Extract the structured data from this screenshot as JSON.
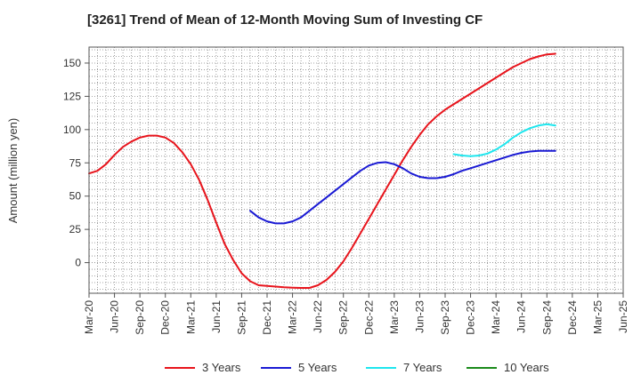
{
  "chart_data": {
    "type": "line",
    "title": "[3261]  Trend of Mean of 12-Month Moving Sum of Investing CF",
    "xlabel": "",
    "ylabel": "Amount (million yen)",
    "ylim": [
      -23,
      162
    ],
    "yticks": [
      0,
      25,
      50,
      75,
      100,
      125,
      150
    ],
    "x_tick_labels": [
      "Mar-20",
      "Jun-20",
      "Sep-20",
      "Dec-20",
      "Mar-21",
      "Jun-21",
      "Sep-21",
      "Dec-21",
      "Mar-22",
      "Jun-22",
      "Sep-22",
      "Dec-22",
      "Mar-23",
      "Jun-23",
      "Sep-23",
      "Dec-23",
      "Mar-24",
      "Jun-24",
      "Sep-24",
      "Dec-24",
      "Mar-25",
      "Jun-25"
    ],
    "x_range_months": [
      0,
      63
    ],
    "grid": true,
    "legend_position": "bottom",
    "series": [
      {
        "name": "3 Years",
        "color": "#e8141c",
        "points": [
          [
            0,
            67
          ],
          [
            1,
            69
          ],
          [
            2,
            74
          ],
          [
            3,
            81
          ],
          [
            4,
            87
          ],
          [
            5,
            91
          ],
          [
            6,
            94
          ],
          [
            7,
            95.5
          ],
          [
            8,
            95.5
          ],
          [
            9,
            94
          ],
          [
            10,
            90
          ],
          [
            11,
            83
          ],
          [
            12,
            74
          ],
          [
            13,
            62
          ],
          [
            14,
            47
          ],
          [
            15,
            30
          ],
          [
            16,
            14
          ],
          [
            17,
            2
          ],
          [
            18,
            -8
          ],
          [
            19,
            -14
          ],
          [
            20,
            -17
          ],
          [
            21,
            -17.5
          ],
          [
            22,
            -18
          ],
          [
            23,
            -18.5
          ],
          [
            24,
            -18.8
          ],
          [
            25,
            -19
          ],
          [
            26,
            -19
          ],
          [
            27,
            -17
          ],
          [
            28,
            -13
          ],
          [
            29,
            -7
          ],
          [
            30,
            1
          ],
          [
            31,
            11
          ],
          [
            32,
            22
          ],
          [
            33,
            33
          ],
          [
            34,
            44
          ],
          [
            35,
            55
          ],
          [
            36,
            66
          ],
          [
            37,
            77
          ],
          [
            38,
            87
          ],
          [
            39,
            96
          ],
          [
            40,
            104
          ],
          [
            41,
            110
          ],
          [
            42,
            115
          ],
          [
            43,
            119
          ],
          [
            44,
            123
          ],
          [
            45,
            127
          ],
          [
            46,
            131
          ],
          [
            47,
            135
          ],
          [
            48,
            139
          ],
          [
            49,
            143
          ],
          [
            50,
            147
          ],
          [
            51,
            150
          ],
          [
            52,
            153
          ],
          [
            53,
            155
          ],
          [
            54,
            156.5
          ],
          [
            55,
            157
          ]
        ]
      },
      {
        "name": "5 Years",
        "color": "#1a1ad4",
        "points": [
          [
            19,
            39
          ],
          [
            20,
            34
          ],
          [
            21,
            31
          ],
          [
            22,
            29.5
          ],
          [
            23,
            29.5
          ],
          [
            24,
            31
          ],
          [
            25,
            34
          ],
          [
            26,
            39
          ],
          [
            27,
            44
          ],
          [
            28,
            49
          ],
          [
            29,
            54
          ],
          [
            30,
            59
          ],
          [
            31,
            64
          ],
          [
            32,
            69
          ],
          [
            33,
            73
          ],
          [
            34,
            75
          ],
          [
            35,
            75.5
          ],
          [
            36,
            74
          ],
          [
            37,
            71
          ],
          [
            38,
            67
          ],
          [
            39,
            64.5
          ],
          [
            40,
            63.5
          ],
          [
            41,
            63.5
          ],
          [
            42,
            64.5
          ],
          [
            43,
            66.5
          ],
          [
            44,
            69
          ],
          [
            45,
            71
          ],
          [
            46,
            73
          ],
          [
            47,
            75
          ],
          [
            48,
            77
          ],
          [
            49,
            79
          ],
          [
            50,
            81
          ],
          [
            51,
            82.5
          ],
          [
            52,
            83.5
          ],
          [
            53,
            84
          ],
          [
            54,
            84
          ],
          [
            55,
            84
          ]
        ]
      },
      {
        "name": "7 Years",
        "color": "#1ee6ee",
        "points": [
          [
            43,
            81.5
          ],
          [
            44,
            80.5
          ],
          [
            45,
            80
          ],
          [
            46,
            80.5
          ],
          [
            47,
            82
          ],
          [
            48,
            85
          ],
          [
            49,
            89
          ],
          [
            50,
            94
          ],
          [
            51,
            98
          ],
          [
            52,
            101
          ],
          [
            53,
            103
          ],
          [
            54,
            104
          ],
          [
            55,
            103
          ]
        ]
      },
      {
        "name": "10 Years",
        "color": "#1a8a1a",
        "points": []
      }
    ]
  }
}
